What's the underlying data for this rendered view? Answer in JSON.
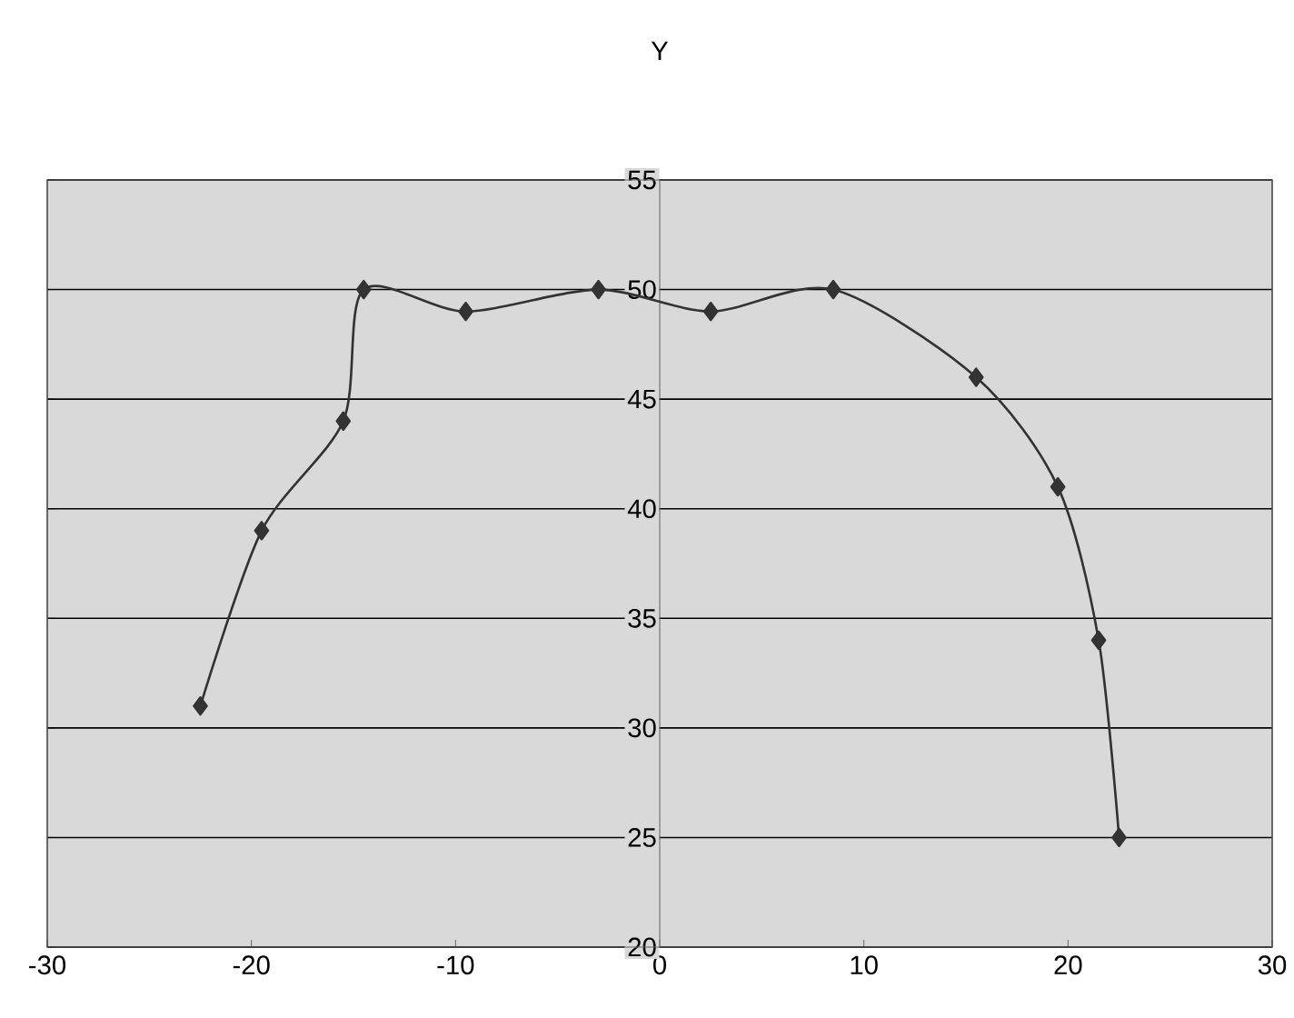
{
  "chart_data": {
    "type": "line",
    "ylabel": "Y",
    "x": [
      -22.5,
      -19.5,
      -15.5,
      -14.5,
      -9.5,
      -3,
      2.5,
      8.5,
      15.5,
      19.5,
      21.5,
      22.5
    ],
    "series": [
      {
        "color": "#333333",
        "values": [
          31,
          39,
          44,
          50,
          49,
          50,
          49,
          50,
          46,
          41,
          34,
          25
        ]
      }
    ],
    "xlim": [
      -30,
      30
    ],
    "xticks": [
      -30,
      -20,
      -10,
      0,
      10,
      20,
      30
    ],
    "ylim": [
      20,
      55
    ],
    "yticks": [
      20,
      25,
      30,
      35,
      40,
      45,
      50,
      55
    ],
    "grid": "y",
    "marker": "diamond",
    "line_style": "solid"
  }
}
